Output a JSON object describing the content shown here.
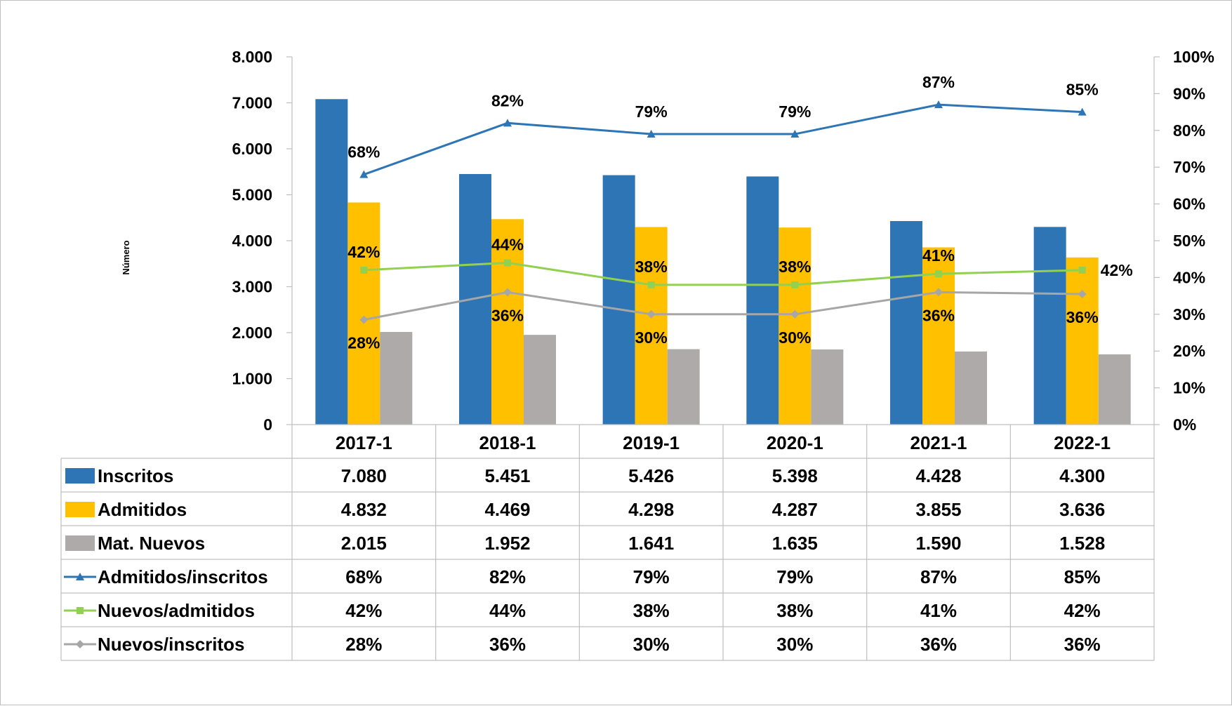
{
  "chart_data": {
    "type": "bar",
    "categories": [
      "2017-1",
      "2018-1",
      "2019-1",
      "2020-1",
      "2021-1",
      "2022-1"
    ],
    "ylabel": "Número",
    "ylim": [
      0,
      8000
    ],
    "y2lim": [
      0,
      1
    ],
    "y_ticks": [
      "0",
      "1.000",
      "2.000",
      "3.000",
      "4.000",
      "5.000",
      "6.000",
      "7.000",
      "8.000"
    ],
    "y2_ticks": [
      "0%",
      "10%",
      "20%",
      "30%",
      "40%",
      "50%",
      "60%",
      "70%",
      "80%",
      "90%",
      "100%"
    ],
    "bar_series": [
      {
        "name": "Inscritos",
        "color": "#2E75B6",
        "values": [
          7080,
          5451,
          5426,
          5398,
          4428,
          4300
        ],
        "labels": [
          "7.080",
          "5.451",
          "5.426",
          "5.398",
          "4.428",
          "4.300"
        ]
      },
      {
        "name": "Admitidos",
        "color": "#FFC000",
        "values": [
          4832,
          4469,
          4298,
          4287,
          3855,
          3636
        ],
        "labels": [
          "4.832",
          "4.469",
          "4.298",
          "4.287",
          "3.855",
          "3.636"
        ]
      },
      {
        "name": "Mat. Nuevos",
        "color": "#AEAAAA",
        "values": [
          2015,
          1952,
          1641,
          1635,
          1590,
          1528
        ],
        "labels": [
          "2.015",
          "1.952",
          "1.641",
          "1.635",
          "1.590",
          "1.528"
        ]
      }
    ],
    "line_series": [
      {
        "name": "Admitidos/inscritos",
        "color": "#2E75B6",
        "marker": "triangle",
        "values": [
          0.68,
          0.82,
          0.79,
          0.79,
          0.87,
          0.85
        ],
        "labels": [
          "68%",
          "82%",
          "79%",
          "79%",
          "87%",
          "85%"
        ]
      },
      {
        "name": "Nuevos/admitidos",
        "color": "#92D050",
        "marker": "square",
        "values": [
          0.42,
          0.44,
          0.38,
          0.38,
          0.41,
          0.42
        ],
        "labels": [
          "42%",
          "44%",
          "38%",
          "38%",
          "41%",
          "42%"
        ]
      },
      {
        "name": "Nuevos/inscritos",
        "color": "#A6A6A6",
        "marker": "diamond",
        "values": [
          0.285,
          0.36,
          0.3,
          0.3,
          0.36,
          0.355
        ],
        "labels": [
          "28%",
          "36%",
          "30%",
          "30%",
          "36%",
          "36%"
        ]
      }
    ],
    "legend": "data-table-below"
  }
}
